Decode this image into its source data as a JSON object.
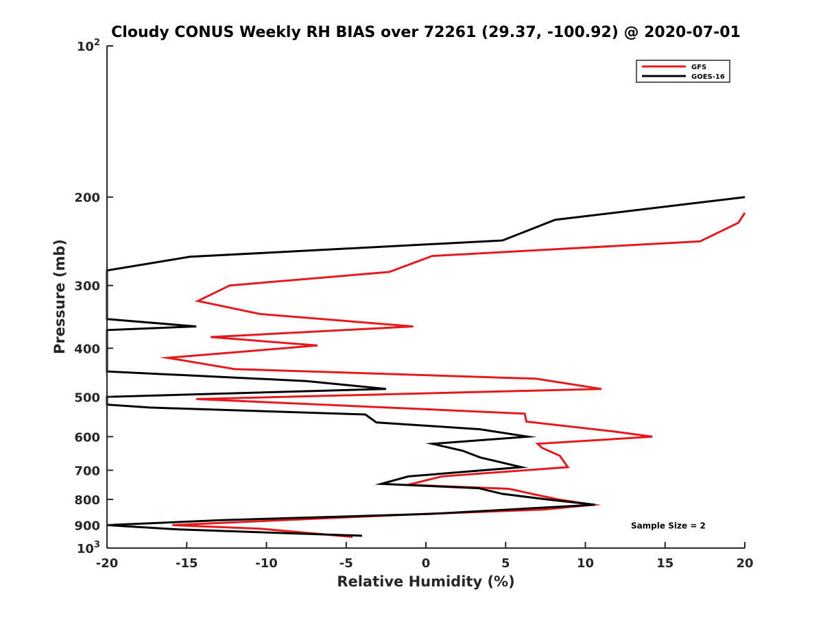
{
  "chart_data": {
    "type": "line",
    "title": "Cloudy CONUS Weekly RH BIAS over 72261 (29.37, -100.92) @ 2020-07-01",
    "xlabel": "Relative Humidity (%)",
    "ylabel": "Pressure (mb)",
    "xlim": [
      -20,
      20
    ],
    "ylim": [
      100,
      1000
    ],
    "y_scale": "log",
    "y_reversed": true,
    "x_ticks": [
      {
        "value": -20,
        "label": "-20"
      },
      {
        "value": -15,
        "label": "-15"
      },
      {
        "value": -10,
        "label": "-10"
      },
      {
        "value": -5,
        "label": "-5"
      },
      {
        "value": 0,
        "label": "0"
      },
      {
        "value": 5,
        "label": "5"
      },
      {
        "value": 10,
        "label": "10"
      },
      {
        "value": 15,
        "label": "15"
      },
      {
        "value": 20,
        "label": "20"
      }
    ],
    "y_ticks": [
      {
        "value": 100,
        "base": "10",
        "exp": "2"
      },
      {
        "value": 200,
        "label": "200"
      },
      {
        "value": 300,
        "label": "300"
      },
      {
        "value": 400,
        "label": "400"
      },
      {
        "value": 500,
        "label": "500"
      },
      {
        "value": 600,
        "label": "600"
      },
      {
        "value": 700,
        "label": "700"
      },
      {
        "value": 800,
        "label": "800"
      },
      {
        "value": 900,
        "label": "900"
      },
      {
        "value": 1000,
        "base": "10",
        "exp": "3"
      }
    ],
    "grid": false,
    "legend_position": "top-right",
    "series": [
      {
        "name": "GFS",
        "color": "#e41a1c",
        "x": [
          20.0,
          19.6,
          17.2,
          0.4,
          -2.3,
          -12.3,
          -14.3,
          -10.4,
          -0.8,
          -13.5,
          -6.8,
          -16.2,
          -12.0,
          6.9,
          11.0,
          -14.4,
          6.2,
          6.3,
          11.6,
          14.2,
          7.0,
          7.3,
          8.4,
          8.9,
          1.0,
          -1.1,
          5.2,
          6.9,
          8.3,
          10.5,
          7.4,
          0.0,
          -10.8,
          -15.9,
          -10.4,
          -4.6
        ],
        "y": [
          215,
          225,
          245,
          262,
          282,
          300,
          322,
          342,
          362,
          380,
          395,
          418,
          440,
          460,
          482,
          505,
          540,
          560,
          585,
          600,
          620,
          632,
          655,
          690,
          720,
          748,
          762,
          783,
          800,
          820,
          838,
          855,
          885,
          900,
          915,
          950
        ]
      },
      {
        "name": "GOES-16",
        "color": "#000000",
        "x": [
          20.0,
          8.1,
          4.8,
          -14.8,
          -20.0,
          -20.0,
          -14.4,
          -20.0,
          -20.0,
          -7.5,
          -2.5,
          -20.0,
          -20.0,
          -17.3,
          -3.8,
          -3.1,
          3.4,
          6.4,
          0.4,
          2.3,
          3.4,
          6.0,
          -1.1,
          -2.8,
          3.3,
          4.8,
          7.6,
          10.6,
          0.3,
          -12.8,
          -20.0,
          -15.5,
          -4.0
        ],
        "y": [
          200,
          222,
          244,
          263,
          280,
          350,
          362,
          368,
          445,
          465,
          482,
          500,
          518,
          525,
          542,
          562,
          580,
          600,
          620,
          640,
          660,
          690,
          720,
          745,
          760,
          780,
          800,
          820,
          855,
          880,
          900,
          918,
          945
        ]
      }
    ],
    "annotations": [
      {
        "text": "Sample Size = 2",
        "x": 15.2,
        "y": 900
      }
    ]
  }
}
